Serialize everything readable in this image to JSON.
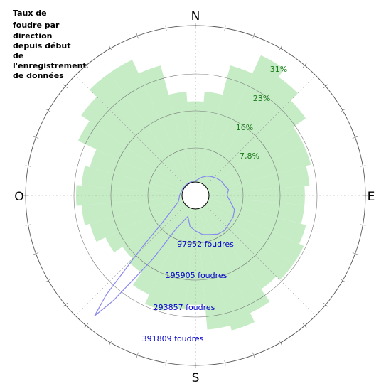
{
  "chart_data": {
    "type": "polar-area",
    "title_lines": [
      "Taux de",
      "foudre par",
      "direction",
      "depuis début",
      "de",
      "l'enregistrement",
      "de données"
    ],
    "compass": {
      "N": "N",
      "E": "E",
      "S": "S",
      "W": "O"
    },
    "radial_axis_percent": {
      "ticks": [
        "7,8%",
        "16%",
        "23%",
        "31%"
      ],
      "values": [
        7.8,
        16,
        23,
        31
      ],
      "max": 31
    },
    "radial_axis_count": {
      "ticks": [
        "97952 foudres",
        "195905 foudres",
        "293857 foudres",
        "391809 foudres"
      ],
      "values": [
        97952,
        195905,
        293857,
        391809
      ],
      "max": 391809
    },
    "series": [
      {
        "type": "bars",
        "color": "#c5ecc5",
        "angles_deg": [
          0,
          10,
          20,
          30,
          40,
          50,
          60,
          70,
          80,
          90,
          100,
          110,
          120,
          130,
          140,
          150,
          160,
          170,
          180,
          190,
          200,
          210,
          220,
          230,
          240,
          250,
          260,
          270,
          280,
          290,
          300,
          310,
          320,
          330,
          340,
          350
        ],
        "values_percent": [
          16,
          18,
          24,
          28,
          26,
          24,
          21,
          21,
          20,
          19,
          19,
          20,
          21,
          21,
          20,
          23,
          25,
          24,
          19,
          20,
          21,
          19,
          16,
          15,
          17,
          19,
          20,
          21,
          20,
          19,
          23,
          25,
          27,
          27,
          24,
          18
        ]
      },
      {
        "type": "line",
        "color": "#8888ee",
        "angles_deg": [
          0,
          10,
          20,
          30,
          40,
          50,
          60,
          70,
          80,
          90,
          100,
          110,
          120,
          130,
          140,
          150,
          160,
          170,
          180,
          190,
          200,
          210,
          214,
          218,
          220,
          222,
          226,
          230,
          240,
          250,
          260,
          270,
          280,
          290,
          300,
          310,
          320,
          330,
          340,
          350
        ],
        "values_count": [
          3000,
          8000,
          15000,
          22000,
          28000,
          34000,
          40000,
          43000,
          50000,
          45000,
          55000,
          70000,
          75000,
          76000,
          80000,
          78000,
          70000,
          65000,
          55000,
          45000,
          22000,
          60000,
          160000,
          300000,
          360000,
          300000,
          150000,
          80000,
          30000,
          12000,
          8000,
          6000,
          4000,
          3000,
          2000,
          2000,
          2000,
          2000,
          2000,
          2500
        ]
      }
    ],
    "grid": true
  }
}
